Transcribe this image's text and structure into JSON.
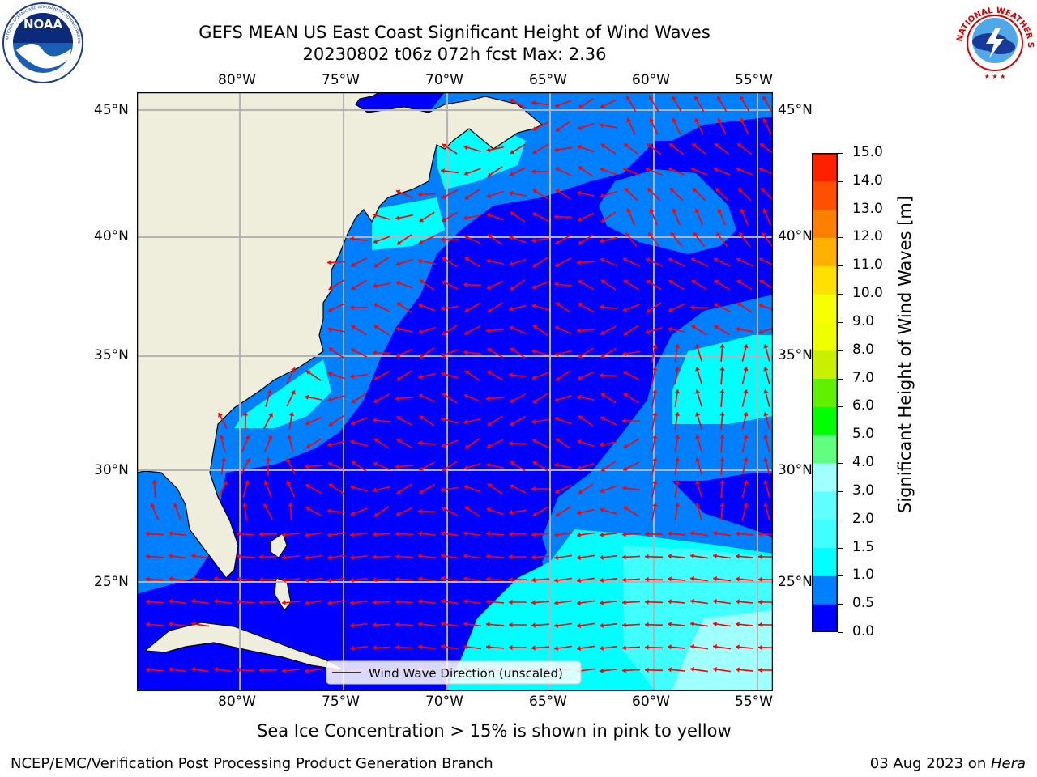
{
  "title": {
    "line1": "GEFS MEAN US East Coast Significant Height of Wind Waves",
    "line2": "20230802 t06z 072h fcst   Max: 2.36"
  },
  "map": {
    "lon_ticks": [
      "80°W",
      "75°W",
      "70°W",
      "65°W",
      "60°W",
      "55°W"
    ],
    "lat_ticks": [
      "45°N",
      "40°N",
      "35°N",
      "30°N",
      "25°N"
    ],
    "legend_label": "Wind Wave Direction (unscaled)",
    "ocean_colors": {
      "0-0.5": "#0000ff",
      "0.5-1.0": "#0080ff",
      "1.0-1.5": "#00ffff",
      "1.5-2.0": "#40ffff",
      "2.0-3.0": "#a0ffff"
    },
    "land_color": "#efeedc",
    "arrow_color": "#ff0000"
  },
  "colorbar": {
    "label": "Significant Height of Wind Waves [m]",
    "levels": [
      {
        "value": "0.0",
        "color": "#0000ff"
      },
      {
        "value": "0.5",
        "color": "#0080ff"
      },
      {
        "value": "1.0",
        "color": "#00ffff"
      },
      {
        "value": "1.5",
        "color": "#40ffff"
      },
      {
        "value": "2.0",
        "color": "#60ffff"
      },
      {
        "value": "3.0",
        "color": "#a0ffff"
      },
      {
        "value": "4.0",
        "color": "#60ff80"
      },
      {
        "value": "5.0",
        "color": "#00ff00"
      },
      {
        "value": "6.0",
        "color": "#60f000"
      },
      {
        "value": "7.0",
        "color": "#c8f000"
      },
      {
        "value": "8.0",
        "color": "#f0ff00"
      },
      {
        "value": "9.0",
        "color": "#f8ff00"
      },
      {
        "value": "10.0",
        "color": "#ffe000"
      },
      {
        "value": "11.0",
        "color": "#ffb000"
      },
      {
        "value": "12.0",
        "color": "#ff8000"
      },
      {
        "value": "13.0",
        "color": "#ff5000"
      },
      {
        "value": "14.0",
        "color": "#ff2000"
      },
      {
        "value": "15.0",
        "color": "#ff0000"
      }
    ]
  },
  "logos": {
    "left_icon": "noaa-logo-icon",
    "left_text": "NOAA",
    "left_ring_text": "NATIONAL OCEANIC AND ATMOSPHERIC ADMINISTRATION · U.S. DEPARTMENT OF COMMERCE",
    "right_icon": "nws-logo-icon",
    "right_ring_text": "NATIONAL WEATHER SERVICE"
  },
  "footer": {
    "note": "Sea Ice Concentration > 15% is shown in pink to yellow",
    "left": "NCEP/EMC/Verification Post Processing Product Generation Branch",
    "right_date": "03 Aug 2023 on ",
    "right_host": "Hera"
  }
}
